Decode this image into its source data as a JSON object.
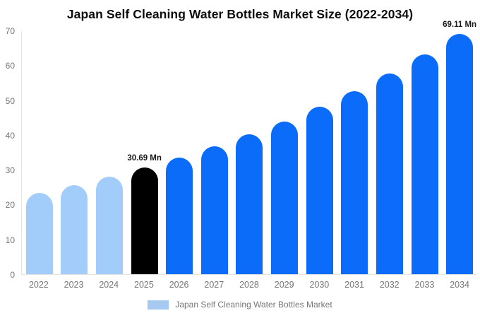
{
  "chart_data": {
    "type": "bar",
    "title": "Japan Self Cleaning Water Bottles Market Size (2022-2034)",
    "xlabel": "",
    "ylabel": "",
    "unit": "Mn",
    "ylim": [
      0,
      70
    ],
    "yticks": [
      0,
      10,
      20,
      30,
      40,
      50,
      60,
      70
    ],
    "grid": false,
    "legend_position": "bottom-center",
    "legend": "Japan Self Cleaning Water Bottles Market",
    "categories": [
      "2022",
      "2023",
      "2024",
      "2025",
      "2026",
      "2027",
      "2028",
      "2029",
      "2030",
      "2031",
      "2032",
      "2033",
      "2034"
    ],
    "values": [
      23.4,
      25.6,
      28.0,
      30.69,
      33.6,
      36.8,
      40.2,
      44.0,
      48.2,
      52.7,
      57.7,
      63.2,
      69.11
    ],
    "bar_color_keys": [
      "past",
      "past",
      "past",
      "current",
      "forecast",
      "forecast",
      "forecast",
      "forecast",
      "forecast",
      "forecast",
      "forecast",
      "forecast",
      "forecast"
    ],
    "annotations": [
      {
        "index": 3,
        "text": "30.69 Mn"
      },
      {
        "index": 12,
        "text": "69.11 Mn"
      }
    ],
    "colors": {
      "past": "#a2ccfa",
      "current": "#000000",
      "forecast": "#0b6cfa",
      "legend_swatch": "#a6c9f1",
      "axis_line": "#e3e3e3",
      "tick_text": "#757575",
      "title_text": "#0d0d0d",
      "annotation_text": "#1a1a1a"
    }
  }
}
